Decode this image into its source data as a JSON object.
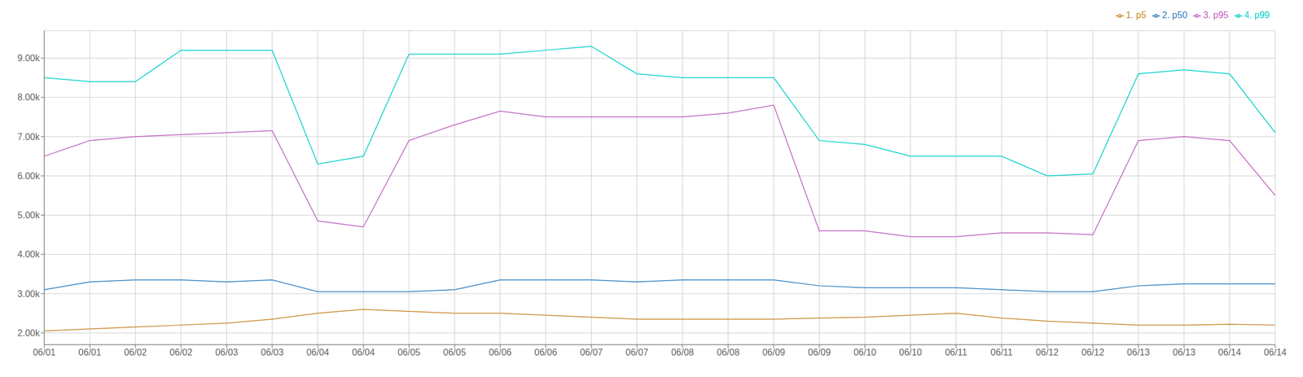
{
  "chart_data": {
    "type": "line",
    "categories": [
      "06/01",
      "06/01",
      "06/02",
      "06/02",
      "06/03",
      "06/03",
      "06/04",
      "06/04",
      "06/05",
      "06/05",
      "06/06",
      "06/06",
      "06/07",
      "06/07",
      "06/08",
      "06/08",
      "06/09",
      "06/09",
      "06/10",
      "06/10",
      "06/11",
      "06/11",
      "06/12",
      "06/12",
      "06/13",
      "06/13",
      "06/14",
      "06/14"
    ],
    "series": [
      {
        "name": "1. p5",
        "color": "#c8882a",
        "values": [
          2050,
          2100,
          2150,
          2200,
          2250,
          2350,
          2500,
          2600,
          2550,
          2500,
          2500,
          2450,
          2400,
          2350,
          2350,
          2350,
          2350,
          2380,
          2400,
          2450,
          2500,
          2380,
          2300,
          2250,
          2200,
          2200,
          2220,
          2200
        ]
      },
      {
        "name": "2. p50",
        "color": "#2f7fc1",
        "values": [
          3100,
          3300,
          3350,
          3350,
          3300,
          3350,
          3050,
          3050,
          3050,
          3100,
          3350,
          3350,
          3350,
          3300,
          3350,
          3350,
          3350,
          3200,
          3150,
          3150,
          3150,
          3100,
          3050,
          3050,
          3200,
          3250,
          3250,
          3250
        ]
      },
      {
        "name": "3. p95",
        "color": "#c060c0",
        "values": [
          6500,
          6900,
          7000,
          7050,
          7100,
          7150,
          4850,
          4700,
          6900,
          7300,
          7650,
          7500,
          7500,
          7500,
          7500,
          7600,
          7800,
          4600,
          4600,
          4450,
          4450,
          4550,
          4550,
          4500,
          6900,
          7000,
          6900,
          5500
        ]
      },
      {
        "name": "4. p99",
        "color": "#00d0c8",
        "values": [
          8500,
          8400,
          8400,
          9200,
          9200,
          9200,
          6300,
          6500,
          9100,
          9100,
          9100,
          9200,
          9300,
          8600,
          8500,
          8500,
          8500,
          6900,
          6800,
          6500,
          6500,
          6500,
          6000,
          6050,
          8600,
          8700,
          8600,
          7100
        ]
      }
    ],
    "ylim": [
      1700,
      9700
    ],
    "yticks": [
      {
        "value": 2000,
        "label": "2.00k"
      },
      {
        "value": 3000,
        "label": "3.00k"
      },
      {
        "value": 4000,
        "label": "4.00k"
      },
      {
        "value": 5000,
        "label": "5.00k"
      },
      {
        "value": 6000,
        "label": "6.00k"
      },
      {
        "value": 7000,
        "label": "7.00k"
      },
      {
        "value": 8000,
        "label": "8.00k"
      },
      {
        "value": 9000,
        "label": "9.00k"
      }
    ],
    "grid": true,
    "legend": "upper right"
  }
}
